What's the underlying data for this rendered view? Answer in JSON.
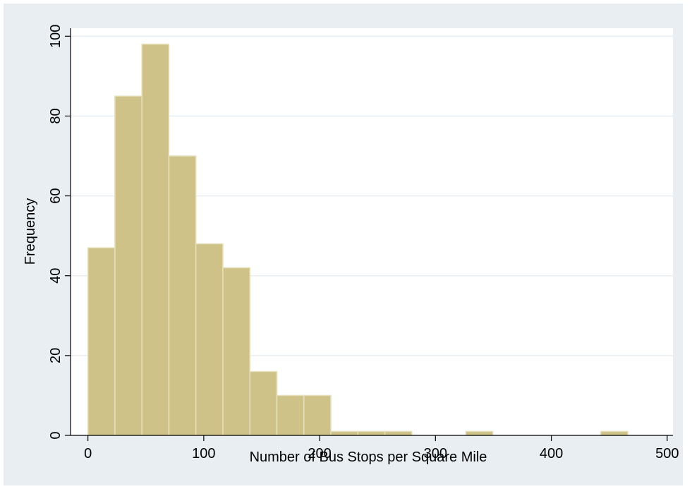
{
  "chart_data": {
    "type": "bar",
    "subtype": "histogram",
    "xlabel": "Number of Bus Stops per Square Mile",
    "ylabel": "Frequency",
    "xlim": [
      -15,
      505
    ],
    "ylim": [
      0,
      102
    ],
    "xticks": [
      0,
      100,
      200,
      300,
      400,
      500
    ],
    "yticks": [
      0,
      20,
      40,
      60,
      80,
      100
    ],
    "grid": true,
    "bar_color": "#cec289",
    "bar_edge_color": "#e6e0bd",
    "bins": [
      {
        "x0": 0,
        "x1": 23.3,
        "value": 47
      },
      {
        "x0": 23.3,
        "x1": 46.6,
        "value": 85
      },
      {
        "x0": 46.6,
        "x1": 69.9,
        "value": 98
      },
      {
        "x0": 69.9,
        "x1": 93.2,
        "value": 70
      },
      {
        "x0": 93.2,
        "x1": 116.5,
        "value": 48
      },
      {
        "x0": 116.5,
        "x1": 139.8,
        "value": 42
      },
      {
        "x0": 139.8,
        "x1": 163.1,
        "value": 16
      },
      {
        "x0": 163.1,
        "x1": 186.4,
        "value": 10
      },
      {
        "x0": 186.4,
        "x1": 209.7,
        "value": 10
      },
      {
        "x0": 209.7,
        "x1": 233.0,
        "value": 1
      },
      {
        "x0": 233.0,
        "x1": 256.3,
        "value": 1
      },
      {
        "x0": 256.3,
        "x1": 279.6,
        "value": 1
      },
      {
        "x0": 279.6,
        "x1": 302.9,
        "value": 0
      },
      {
        "x0": 302.9,
        "x1": 326.2,
        "value": 0
      },
      {
        "x0": 326.2,
        "x1": 349.5,
        "value": 1
      },
      {
        "x0": 349.5,
        "x1": 372.8,
        "value": 0
      },
      {
        "x0": 372.8,
        "x1": 396.1,
        "value": 0
      },
      {
        "x0": 396.1,
        "x1": 419.4,
        "value": 0
      },
      {
        "x0": 419.4,
        "x1": 442.7,
        "value": 0
      },
      {
        "x0": 442.7,
        "x1": 466.0,
        "value": 1
      }
    ]
  }
}
